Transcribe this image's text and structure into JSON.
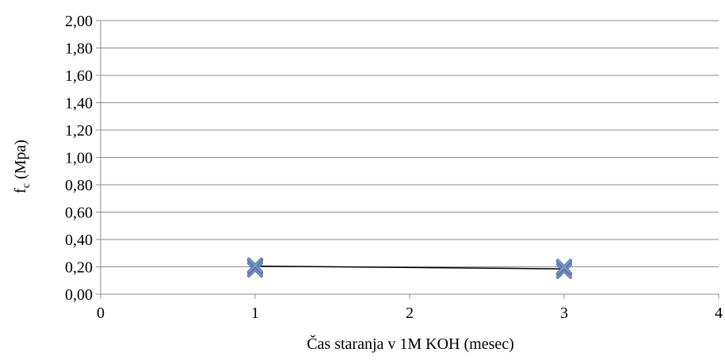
{
  "chart_data": {
    "type": "scatter",
    "title": "",
    "xlabel": "Čas staranja v 1M KOH (mesec)",
    "ylabel": "f",
    "ylabel_subscript": "c",
    "ylabel_unit": " (Mpa)",
    "xlim": [
      0,
      4
    ],
    "ylim": [
      0,
      2
    ],
    "x_ticks": [
      0,
      1,
      2,
      3,
      4
    ],
    "x_tick_labels": [
      "0",
      "1",
      "2",
      "3",
      "4"
    ],
    "y_ticks": [
      0,
      0.2,
      0.4,
      0.6,
      0.8,
      1.0,
      1.2,
      1.4,
      1.6,
      1.8,
      2.0
    ],
    "y_tick_labels": [
      "0,00",
      "0,20",
      "0,40",
      "0,60",
      "0,80",
      "1,00",
      "1,20",
      "1,40",
      "1,60",
      "1,80",
      "2,00"
    ],
    "grid": "horizontal",
    "legend": "none",
    "series": [
      {
        "kind": "line",
        "color": "#000000",
        "points": [
          [
            1,
            0.205
          ],
          [
            3,
            0.185
          ]
        ]
      },
      {
        "kind": "markers",
        "marker": "x",
        "color": "#7f9cc8",
        "points": [
          [
            1,
            0.18
          ],
          [
            1,
            0.2
          ],
          [
            1,
            0.21
          ],
          [
            3,
            0.17
          ],
          [
            3,
            0.19
          ],
          [
            3,
            0.2
          ]
        ]
      }
    ]
  }
}
